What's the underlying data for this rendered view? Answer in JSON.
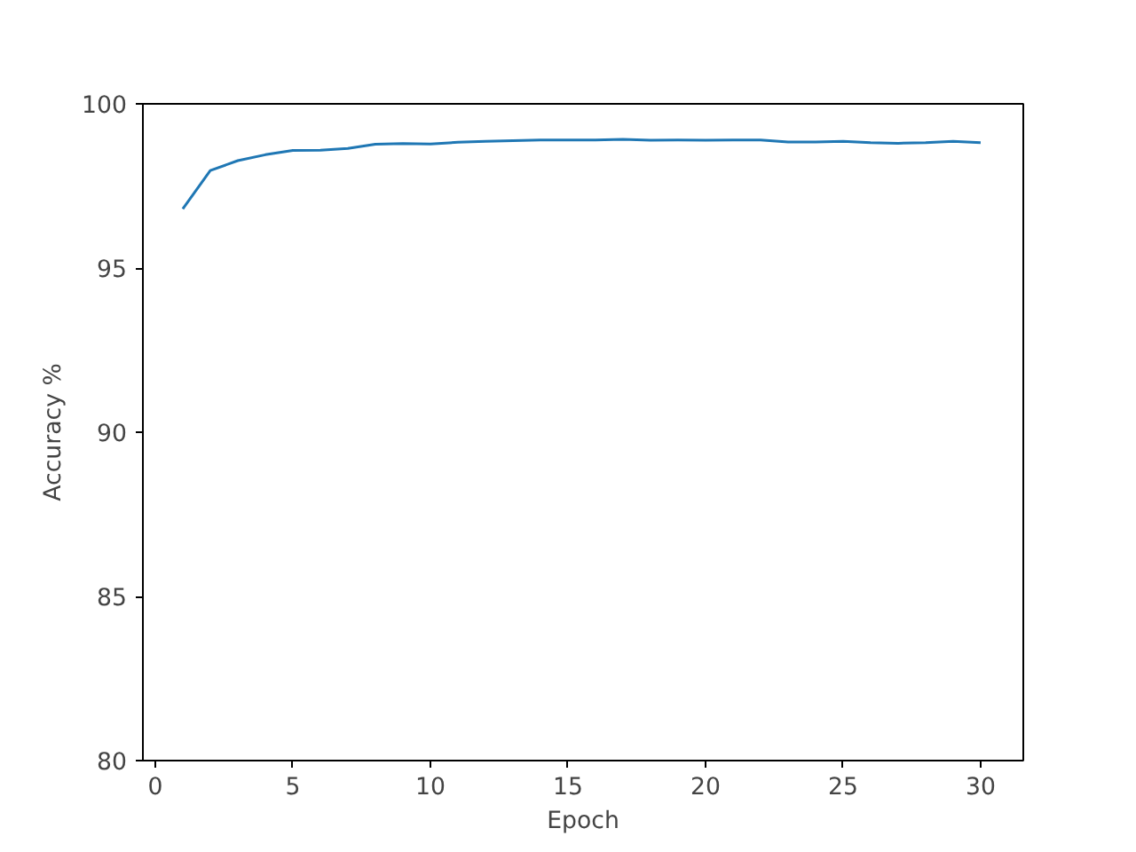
{
  "chart_data": {
    "type": "line",
    "xlabel": "Epoch",
    "ylabel": "Accuracy %",
    "x": [
      1,
      2,
      3,
      4,
      5,
      6,
      7,
      8,
      9,
      10,
      11,
      12,
      13,
      14,
      15,
      16,
      17,
      18,
      19,
      20,
      21,
      22,
      23,
      24,
      25,
      26,
      27,
      28,
      29,
      30
    ],
    "series": [
      {
        "color": "#1f77b4",
        "values": [
          96.8,
          97.97,
          98.27,
          98.45,
          98.58,
          98.59,
          98.64,
          98.77,
          98.79,
          98.78,
          98.83,
          98.86,
          98.88,
          98.9,
          98.9,
          98.9,
          98.92,
          98.89,
          98.9,
          98.89,
          98.9,
          98.9,
          98.84,
          98.84,
          98.86,
          98.82,
          98.8,
          98.82,
          98.86,
          98.82
        ]
      }
    ],
    "xlim": [
      -0.45,
      31.55
    ],
    "ylim": [
      80,
      100
    ],
    "xticks": [
      0,
      5,
      10,
      15,
      20,
      25,
      30
    ],
    "yticks": [
      80,
      85,
      90,
      95,
      100
    ],
    "grid": false
  }
}
